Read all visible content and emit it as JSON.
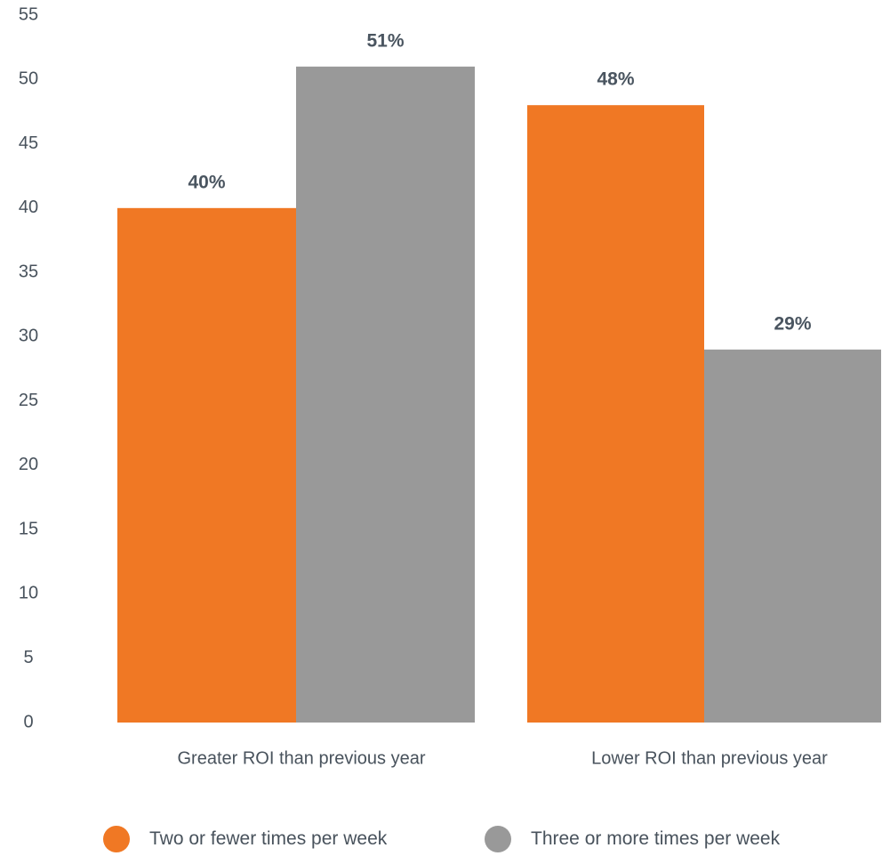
{
  "chart_data": {
    "type": "bar",
    "categories": [
      "Greater ROI than previous year",
      "Lower ROI than previous year"
    ],
    "series": [
      {
        "name": "Two or fewer times per week",
        "values": [
          40,
          48
        ],
        "labels": [
          "40%",
          "48%"
        ],
        "color": "#f07824"
      },
      {
        "name": "Three or more times per week",
        "values": [
          51,
          29
        ],
        "labels": [
          "51%",
          "29%"
        ],
        "color": "#999999"
      }
    ],
    "y_ticks": [
      "0",
      "5",
      "10",
      "15",
      "20",
      "25",
      "30",
      "35",
      "40",
      "45",
      "50",
      "55"
    ],
    "ylim": [
      0,
      55
    ],
    "grid": false,
    "legend_position": "bottom"
  }
}
